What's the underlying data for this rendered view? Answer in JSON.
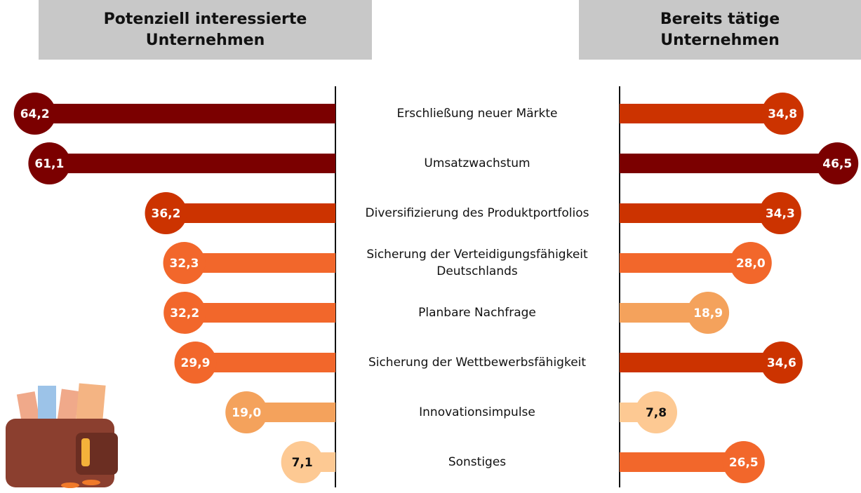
{
  "chart_data": {
    "type": "butterfly",
    "categories": [
      "Erschließung neuer Märkte",
      "Umsatzwachstum",
      "Diversifizierung des Produktportfolios",
      "Sicherung der Verteidigungsfähigkeit Deutschlands",
      "Planbare Nachfrage",
      "Sicherung der Wettbewerbsfähigkeit",
      "Innovationsimpulse",
      "Sonstiges"
    ],
    "series": [
      {
        "name": "Potenziell interessierte Unternehmen",
        "values": [
          64.2,
          61.1,
          36.2,
          32.3,
          32.2,
          29.9,
          19.0,
          7.1
        ],
        "value_labels": [
          "64,2",
          "61,1",
          "36,2",
          "32,3",
          "32,2",
          "29,9",
          "19,0",
          "7,1"
        ],
        "colors": [
          "#7b0000",
          "#7b0000",
          "#cc3300",
          "#f2672b",
          "#f2672b",
          "#f2672b",
          "#f4a25c",
          "#fdc993"
        ]
      },
      {
        "name": "Bereits tätige Unternehmen",
        "values": [
          34.8,
          46.5,
          34.3,
          28.0,
          18.9,
          34.6,
          7.8,
          26.5
        ],
        "value_labels": [
          "34,8",
          "46,5",
          "34,3",
          "28,0",
          "18,9",
          "34,6",
          "7,8",
          "26,5"
        ],
        "colors": [
          "#cc3300",
          "#7b0000",
          "#cc3300",
          "#f2672b",
          "#f4a25c",
          "#cc3300",
          "#fdc993",
          "#f2672b"
        ]
      }
    ],
    "xlim": [
      0,
      70
    ]
  }
}
